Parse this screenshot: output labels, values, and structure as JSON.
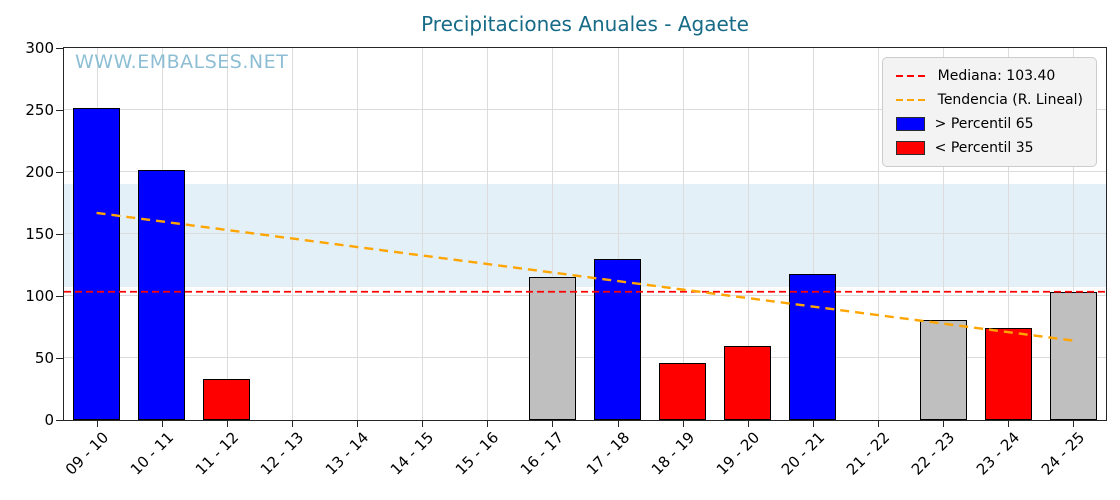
{
  "title": "Precipitaciones Anuales - Agaete",
  "watermark": "WWW.EMBALSES.NET",
  "legend": {
    "items": [
      {
        "label": "Mediana: 103.40",
        "type": "dashed-line",
        "color_key": "median"
      },
      {
        "label": "Tendencia (R. Lineal)",
        "type": "dashed-line",
        "color_key": "trend"
      },
      {
        "label": "> Percentil 65",
        "type": "patch",
        "color_key": "blue"
      },
      {
        "label": "< Percentil 35",
        "type": "patch",
        "color_key": "red"
      }
    ]
  },
  "colors": {
    "title": "#176b87",
    "watermark": "#8dbed4",
    "median": "#ff0000",
    "trend": "#ffa500",
    "blue": "#0000ff",
    "red": "#ff0000",
    "gray": "#bfbfbf",
    "band": "#e3f0f8"
  },
  "chart_data": {
    "type": "bar",
    "title": "Precipitaciones Anuales - Agaete",
    "xlabel": "",
    "ylabel": "",
    "ylim": [
      0,
      300
    ],
    "y_ticks": [
      0,
      50,
      100,
      150,
      200,
      250,
      300
    ],
    "grid": true,
    "legend_position": "upper right",
    "categories": [
      "09 - 10",
      "10 - 11",
      "11 - 12",
      "12 - 13",
      "13 - 14",
      "14 - 15",
      "15 - 16",
      "16 - 17",
      "17 - 18",
      "18 - 19",
      "19 - 20",
      "20 - 21",
      "21 - 22",
      "22 - 23",
      "23 - 24",
      "24 - 25"
    ],
    "values": [
      252,
      202,
      33,
      0,
      0,
      0,
      0,
      115,
      130,
      46,
      60,
      118,
      0,
      81,
      74,
      103
    ],
    "bar_classes": [
      "blue",
      "blue",
      "red",
      "none",
      "none",
      "none",
      "none",
      "gray",
      "blue",
      "red",
      "red",
      "blue",
      "none",
      "gray",
      "red",
      "gray"
    ],
    "median": 103.4,
    "trend": {
      "start": 167,
      "end": 64
    },
    "shaded_band": {
      "from": 107,
      "to": 190
    }
  }
}
